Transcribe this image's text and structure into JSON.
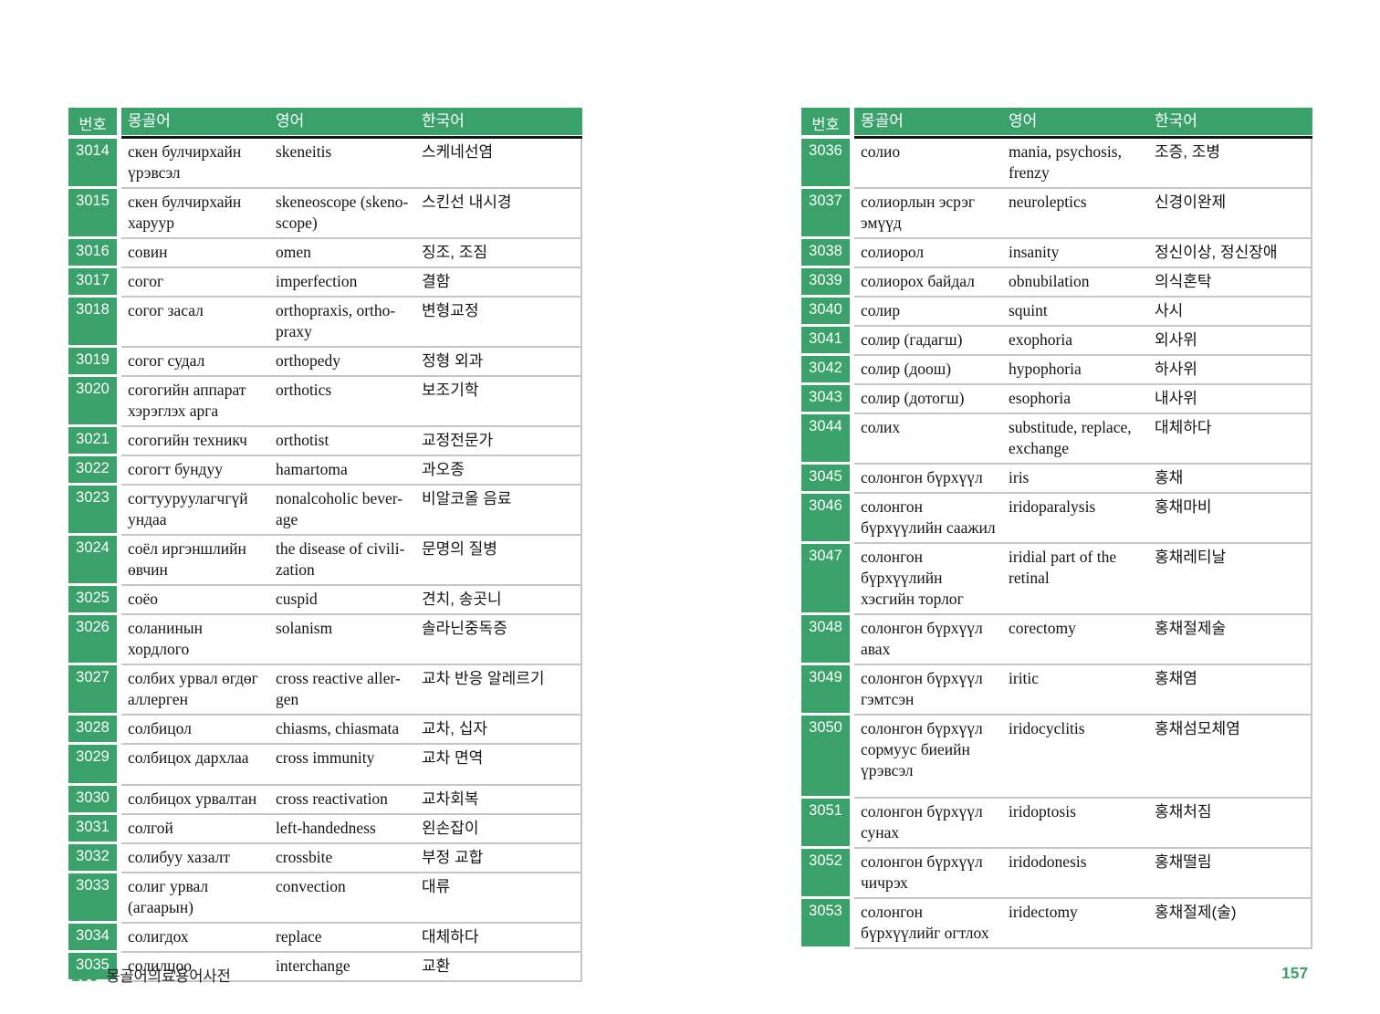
{
  "colors": {
    "green": "#3aa16b",
    "row_border": "#c6c6c6",
    "header_underline": "#161616"
  },
  "columns": {
    "no": "번호",
    "mongolian": "몽골어",
    "english": "영어",
    "korean": "한국어"
  },
  "left_table": {
    "rows": [
      {
        "no": "3014",
        "mn": "скен булчирхайн үрэвсэл",
        "en": "skeneitis",
        "ko": "스케네선염"
      },
      {
        "no": "3015",
        "mn": "скен булчирхайн харуур",
        "en": "skeneoscope (skeno-scope)",
        "ko": "스킨선 내시경"
      },
      {
        "no": "3016",
        "mn": "совин",
        "en": "omen",
        "ko": "징조, 조짐"
      },
      {
        "no": "3017",
        "mn": "согог",
        "en": "imperfection",
        "ko": "결함"
      },
      {
        "no": "3018",
        "mn": "согог засал",
        "en": "orthopraxis, ortho-praxy",
        "ko": "변형교정"
      },
      {
        "no": "3019",
        "mn": "согог судал",
        "en": "orthopedy",
        "ko": "정형 외과"
      },
      {
        "no": "3020",
        "mn": "согогийн аппарат хэрэглэх арга",
        "en": "orthotics",
        "ko": "보조기학"
      },
      {
        "no": "3021",
        "mn": "согогийн техникч",
        "en": "orthotist",
        "ko": "교정전문가"
      },
      {
        "no": "3022",
        "mn": "согогт бундуу",
        "en": "hamartoma",
        "ko": "과오종"
      },
      {
        "no": "3023",
        "mn": "согтууруулагчгүй ундаа",
        "en": "nonalcoholic bever-age",
        "ko": "비알코올 음료"
      },
      {
        "no": "3024",
        "mn": "соёл иргэншлийн өвчин",
        "en": "the disease of civili-zation",
        "ko": "문명의 질병"
      },
      {
        "no": "3025",
        "mn": "соёо",
        "en": "cuspid",
        "ko": "견치, 송곳니"
      },
      {
        "no": "3026",
        "mn": "соланинын хордлого",
        "en": "solanism",
        "ko": "솔라닌중독증"
      },
      {
        "no": "3027",
        "mn": "солбих урвал өгдөг аллерген",
        "en": "cross reactive aller-gen",
        "ko": "교차 반응 알레르기"
      },
      {
        "no": "3028",
        "mn": "солбицол",
        "en": "chiasms, chiasmata",
        "ko": "교차, 십자"
      },
      {
        "no": "3029",
        "mn": "солбицох дархлаа",
        "en": "cross immunity",
        "ko": "교차 면역",
        "extra_space": true
      },
      {
        "no": "3030",
        "mn": "солбицох урвалтан",
        "en": "cross reactivation",
        "ko": "교차회복"
      },
      {
        "no": "3031",
        "mn": "солгой",
        "en": "left-handedness",
        "ko": "왼손잡이"
      },
      {
        "no": "3032",
        "mn": "солибуу хазалт",
        "en": "crossbite",
        "ko": "부정 교합"
      },
      {
        "no": "3033",
        "mn": "солиг урвал (агаарын)",
        "en": "convection",
        "ko": "대류"
      },
      {
        "no": "3034",
        "mn": "солигдох",
        "en": "replace",
        "ko": "대체하다"
      },
      {
        "no": "3035",
        "mn": "солилцоо",
        "en": "interchange",
        "ko": "교환"
      }
    ]
  },
  "right_table": {
    "rows": [
      {
        "no": "3036",
        "mn": "солио",
        "en": "mania, psychosis, frenzy",
        "ko": "조증, 조병"
      },
      {
        "no": "3037",
        "mn": "солиорлын эсрэг эмүүд",
        "en": "neuroleptics",
        "ko": "신경이완제"
      },
      {
        "no": "3038",
        "mn": "солиорол",
        "en": "insanity",
        "ko": "정신이상, 정신장애"
      },
      {
        "no": "3039",
        "mn": "солиорох байдал",
        "en": "obnubilation",
        "ko": "의식혼탁"
      },
      {
        "no": "3040",
        "mn": "солир",
        "en": "squint",
        "ko": "사시"
      },
      {
        "no": "3041",
        "mn": "солир (гадагш)",
        "en": "exophoria",
        "ko": "외사위"
      },
      {
        "no": "3042",
        "mn": "солир (доош)",
        "en": "hypophoria",
        "ko": "하사위"
      },
      {
        "no": "3043",
        "mn": "солир (дотогш)",
        "en": "esophoria",
        "ko": "내사위"
      },
      {
        "no": "3044",
        "mn": "солих",
        "en": "substitude, replace, exchange",
        "ko": "대체하다"
      },
      {
        "no": "3045",
        "mn": "солонгон бүрхүүл",
        "en": "iris",
        "ko": "홍채"
      },
      {
        "no": "3046",
        "mn": "солонгон бүрхүүлийн саажил",
        "en": "iridoparalysis",
        "ko": "홍채마비"
      },
      {
        "no": "3047",
        "mn": "солонгон бүрхүүлийн хэсгийн торлог",
        "en": "iridial part of the retinal",
        "ko": "홍채레티날"
      },
      {
        "no": "3048",
        "mn": "солонгон бүрхүүл авах",
        "en": "corectomy",
        "ko": "홍채절제술"
      },
      {
        "no": "3049",
        "mn": "солонгон бүрхүүл гэмтсэн",
        "en": "iritic",
        "ko": "홍채염"
      },
      {
        "no": "3050",
        "mn": "солонгон бүрхүүл сормуус биеийн үрэвсэл",
        "en": "iridocyclitis",
        "ko": "홍채섬모체염",
        "extra_space": true
      },
      {
        "no": "3051",
        "mn": "солонгон бүрхүүл сунах",
        "en": "iridoptosis",
        "ko": "홍채처짐"
      },
      {
        "no": "3052",
        "mn": "солонгон бүрхүүл чичрэх",
        "en": "iridodonesis",
        "ko": "홍채떨림"
      },
      {
        "no": "3053",
        "mn": "солонгон бүрхүүлийг огтлох",
        "en": "iridectomy",
        "ko": "홍채절제(술)"
      }
    ]
  },
  "footer": {
    "left_number": "156",
    "left_title": "몽골어의료용어사전",
    "right_number": "157"
  }
}
